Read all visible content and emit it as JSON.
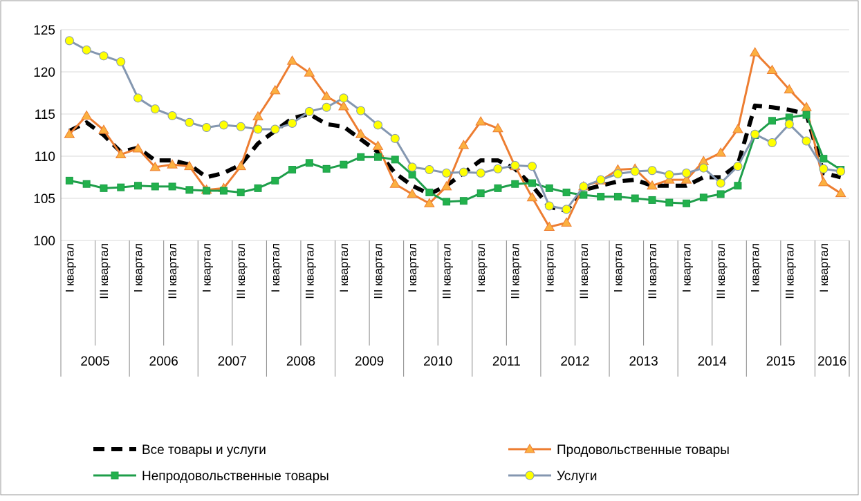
{
  "chart_data": {
    "type": "line",
    "categories": [
      "I квартал",
      null,
      "III квартал",
      null,
      "I квартал",
      null,
      "III квартал",
      null,
      "I квартал",
      null,
      "III квартал",
      null,
      "I квартал",
      null,
      "III квартал",
      null,
      "I квартал",
      null,
      "III квартал",
      null,
      "I квартал",
      null,
      "III квартал",
      null,
      "I квартал",
      null,
      "III квартал",
      null,
      "I квартал",
      null,
      "III квартал",
      null,
      "I квартал",
      null,
      "III квартал",
      null,
      "I квартал",
      null,
      "III квартал",
      null,
      "I квартал",
      null,
      "III квартал",
      null,
      "I квартал",
      null
    ],
    "years": [
      "2005",
      "2006",
      "2007",
      "2008",
      "2009",
      "2010",
      "2011",
      "2012",
      "2013",
      "2014",
      "2015",
      "2016"
    ],
    "ylim": [
      100,
      125
    ],
    "yticks": [
      100,
      105,
      110,
      115,
      120,
      125
    ],
    "grid": true,
    "series": [
      {
        "name": "Все товары и услуги",
        "color": "#000000",
        "line_style": "dashed",
        "marker": "none",
        "values": [
          113,
          114,
          112.5,
          110.5,
          111,
          109.5,
          109.5,
          109,
          107.5,
          108,
          109,
          111.5,
          113,
          114.5,
          115,
          113.8,
          113.5,
          112,
          110.5,
          108,
          106.5,
          105.5,
          106.5,
          108,
          109.5,
          109.5,
          108.5,
          106.5,
          104,
          103.5,
          106,
          106.5,
          107,
          107.2,
          106.5,
          106.5,
          106.5,
          107.5,
          107.5,
          109,
          116,
          115.8,
          115.5,
          115,
          108,
          107.5
        ]
      },
      {
        "name": "Продовольственные товары",
        "color": "#ed7d31",
        "line_style": "solid",
        "marker": "triangle",
        "marker_color": "#fbb040",
        "values": [
          112.6,
          114.8,
          113.1,
          110.2,
          110.9,
          108.7,
          109.0,
          108.8,
          106.0,
          106.2,
          108.8,
          114.7,
          117.8,
          121.3,
          119.9,
          117.1,
          115.9,
          112.6,
          111.2,
          106.7,
          105.5,
          104.4,
          106.4,
          111.3,
          114.1,
          113.3,
          108.8,
          105.1,
          101.6,
          102.1,
          106.4,
          107.1,
          108.4,
          108.5,
          106.5,
          107.2,
          107.2,
          109.4,
          110.4,
          113.2,
          122.3,
          120.2,
          117.9,
          115.8,
          106.9,
          105.6
        ]
      },
      {
        "name": "Непродовольственные товары",
        "color": "#1e9e4a",
        "line_style": "solid",
        "marker": "square",
        "marker_color": "#22b14c",
        "values": [
          107.1,
          106.7,
          106.2,
          106.3,
          106.5,
          106.4,
          106.4,
          106.0,
          105.9,
          105.9,
          105.7,
          106.2,
          107.1,
          108.4,
          109.2,
          108.5,
          109.0,
          109.9,
          109.9,
          109.6,
          107.8,
          105.7,
          104.6,
          104.7,
          105.6,
          106.2,
          106.7,
          106.8,
          106.2,
          105.7,
          105.4,
          105.2,
          105.2,
          105.0,
          104.8,
          104.5,
          104.4,
          105.1,
          105.5,
          106.5,
          112.5,
          114.2,
          114.6,
          114.9,
          109.7,
          108.4
        ]
      },
      {
        "name": "Услуги",
        "color": "#8497b0",
        "line_style": "solid",
        "marker": "circle",
        "marker_color": "#ffff00",
        "values": [
          123.7,
          122.6,
          121.9,
          121.2,
          116.9,
          115.6,
          114.8,
          114.0,
          113.4,
          113.7,
          113.5,
          113.2,
          113.2,
          113.9,
          115.3,
          115.8,
          116.9,
          115.4,
          113.7,
          112.1,
          108.7,
          108.4,
          108.0,
          108.1,
          108.0,
          108.5,
          108.9,
          108.8,
          104.1,
          103.7,
          106.4,
          107.2,
          107.9,
          108.2,
          108.3,
          107.8,
          108.0,
          108.6,
          106.8,
          108.8,
          112.6,
          111.6,
          113.8,
          111.8,
          108.5,
          108.2
        ]
      }
    ]
  }
}
